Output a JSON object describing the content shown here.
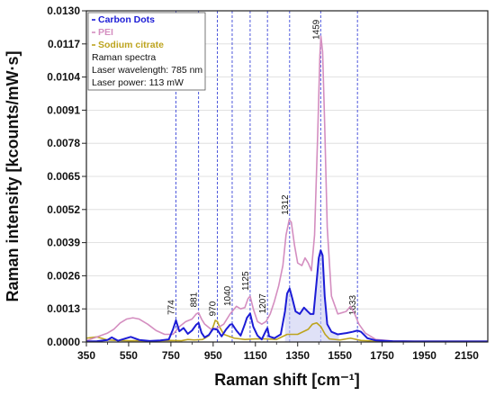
{
  "chart_data": {
    "type": "line",
    "xlabel": "Raman shift [cm⁻¹]",
    "ylabel": "Raman intensity [kcounts/mW·s]",
    "xlim": [
      350,
      2250
    ],
    "ylim": [
      0,
      0.013
    ],
    "x_ticks": [
      350,
      550,
      750,
      950,
      1150,
      1350,
      1550,
      1750,
      1950,
      2150
    ],
    "y_ticks": [
      "0.0000",
      "0.0013",
      "0.0026",
      "0.0039",
      "0.0052",
      "0.0065",
      "0.0078",
      "0.0091",
      "0.0104",
      "0.0117",
      "0.0130"
    ],
    "legend_position": "top-left",
    "legend_notes": [
      "Raman spectra",
      "Laser wavelength: 785 nm",
      "Laser power: 113 mW"
    ],
    "peak_labels": [
      774,
      881,
      970,
      1040,
      1125,
      1207,
      1312,
      1459,
      1633
    ],
    "series": [
      {
        "name": "Carbon Dots",
        "color": "#1c1cd6",
        "x": [
          350,
          400,
          450,
          470,
          500,
          560,
          600,
          650,
          700,
          740,
          760,
          774,
          790,
          810,
          830,
          850,
          870,
          881,
          895,
          910,
          930,
          950,
          970,
          990,
          1010,
          1030,
          1040,
          1060,
          1080,
          1100,
          1110,
          1125,
          1140,
          1160,
          1180,
          1200,
          1207,
          1215,
          1240,
          1270,
          1290,
          1300,
          1312,
          1325,
          1340,
          1360,
          1380,
          1395,
          1410,
          1425,
          1440,
          1450,
          1459,
          1468,
          1478,
          1490,
          1510,
          1540,
          1580,
          1610,
          1633,
          1650,
          1680,
          1720,
          1800,
          1900,
          2050,
          2250
        ],
        "values": [
          2e-05,
          3e-05,
          8e-05,
          0.00018,
          5e-05,
          0.0002,
          8e-05,
          4e-05,
          6e-05,
          0.0001,
          0.0005,
          0.00085,
          0.00042,
          0.00055,
          0.00032,
          0.00045,
          0.00068,
          0.00075,
          0.00036,
          0.00018,
          0.00028,
          0.00052,
          0.00048,
          0.00022,
          0.00048,
          0.00068,
          0.0007,
          0.00045,
          0.00025,
          0.0007,
          0.00095,
          0.00112,
          0.0006,
          0.00025,
          0.0001,
          0.00045,
          0.00055,
          0.00022,
          0.00015,
          0.0003,
          0.0012,
          0.0019,
          0.0021,
          0.0017,
          0.0012,
          0.0011,
          0.00135,
          0.00122,
          0.0011,
          0.0011,
          0.0024,
          0.0033,
          0.0036,
          0.0034,
          0.0018,
          0.0007,
          0.0004,
          0.0003,
          0.00035,
          0.0004,
          0.00045,
          0.0004,
          0.00015,
          6e-05,
          3e-05,
          2e-05,
          2e-05,
          2e-05
        ]
      },
      {
        "name": "PEI",
        "color": "#d48ec0",
        "x": [
          350,
          400,
          450,
          480,
          510,
          540,
          570,
          600,
          640,
          680,
          720,
          760,
          790,
          820,
          850,
          870,
          881,
          895,
          910,
          940,
          970,
          1000,
          1030,
          1060,
          1080,
          1100,
          1115,
          1125,
          1140,
          1160,
          1180,
          1200,
          1220,
          1240,
          1260,
          1280,
          1295,
          1310,
          1320,
          1335,
          1350,
          1370,
          1385,
          1400,
          1415,
          1430,
          1445,
          1455,
          1460,
          1468,
          1478,
          1490,
          1510,
          1540,
          1580,
          1600,
          1620,
          1640,
          1670,
          1720,
          1800,
          1900,
          2050,
          2250
        ],
        "values": [
          5e-05,
          0.0002,
          0.00035,
          0.0005,
          0.00075,
          0.0009,
          0.00095,
          0.0009,
          0.0007,
          0.00045,
          0.0003,
          0.0003,
          0.0006,
          0.0008,
          0.0009,
          0.0011,
          0.00115,
          0.0009,
          0.0007,
          0.0005,
          0.00055,
          0.0007,
          0.0011,
          0.0014,
          0.0013,
          0.00135,
          0.0017,
          0.0018,
          0.0013,
          0.0008,
          0.0007,
          0.0008,
          0.0011,
          0.0016,
          0.0022,
          0.003,
          0.0042,
          0.0048,
          0.0047,
          0.0038,
          0.0031,
          0.003,
          0.0033,
          0.0031,
          0.0028,
          0.0042,
          0.0082,
          0.0112,
          0.012,
          0.0114,
          0.0085,
          0.0045,
          0.0018,
          0.0011,
          0.0012,
          0.0014,
          0.0011,
          0.0007,
          0.00035,
          0.0001,
          4e-05,
          3e-05,
          3e-05,
          3e-05
        ]
      },
      {
        "name": "Sodium citrate",
        "color": "#bda41f",
        "x": [
          350,
          400,
          450,
          500,
          550,
          600,
          650,
          700,
          750,
          800,
          830,
          860,
          900,
          930,
          950,
          960,
          970,
          980,
          1000,
          1050,
          1100,
          1150,
          1200,
          1250,
          1300,
          1350,
          1400,
          1420,
          1440,
          1460,
          1480,
          1500,
          1550,
          1600,
          1650,
          1700,
          1800,
          1900,
          2050,
          2250
        ],
        "values": [
          0.00015,
          0.0002,
          8e-05,
          6e-05,
          5e-05,
          5e-05,
          4e-05,
          5e-05,
          6e-05,
          5e-05,
          0.0001,
          8e-05,
          0.0001,
          0.00025,
          0.0006,
          0.00085,
          0.0008,
          0.0006,
          0.0003,
          0.00015,
          0.0001,
          0.00012,
          0.00012,
          0.0001,
          0.0003,
          0.0003,
          0.0005,
          0.0007,
          0.00075,
          0.0006,
          0.0003,
          0.00012,
          8e-05,
          0.00015,
          6e-05,
          4e-05,
          3e-05,
          3e-05,
          3e-05,
          3e-05
        ]
      }
    ]
  }
}
